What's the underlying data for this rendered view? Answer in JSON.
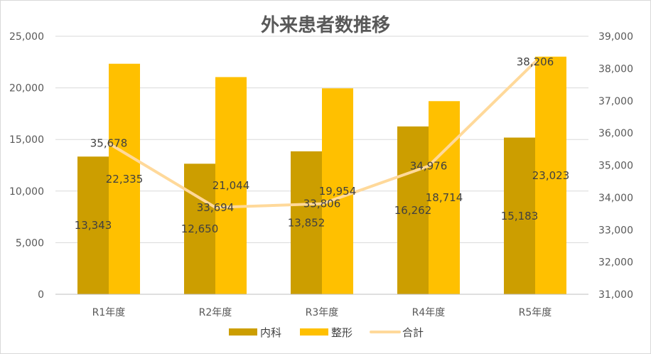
{
  "chart_data": {
    "type": "bar",
    "title": "外来患者数推移",
    "categories": [
      "R1年度",
      "R2年度",
      "R3年度",
      "R4年度",
      "R5年度"
    ],
    "series": [
      {
        "name": "内科",
        "type": "bar",
        "axis": "left",
        "color": "#CC9E00",
        "values": [
          13343,
          12650,
          13852,
          16262,
          15183
        ]
      },
      {
        "name": "整形",
        "type": "bar",
        "axis": "left",
        "color": "#FFC000",
        "values": [
          22335,
          21044,
          19954,
          18714,
          23023
        ]
      },
      {
        "name": "合計",
        "type": "line",
        "axis": "right",
        "color": "#FFD99A",
        "values": [
          35678,
          33694,
          33806,
          34976,
          38206
        ]
      }
    ],
    "data_labels": {
      "内科": [
        "13,343",
        "12,650",
        "13,852",
        "16,262",
        "15,183"
      ],
      "整形": [
        "22,335",
        "21,044",
        "19,954",
        "18,714",
        "23,023"
      ],
      "合計": [
        "35,678",
        "33,694",
        "33,806",
        "34,976",
        "38,206"
      ]
    },
    "y_left": {
      "min": 0,
      "max": 25000,
      "ticks": [
        "0",
        "5,000",
        "10,000",
        "15,000",
        "20,000",
        "25,000"
      ]
    },
    "y_right": {
      "min": 31000,
      "max": 39000,
      "ticks": [
        "31,000",
        "32,000",
        "33,000",
        "34,000",
        "35,000",
        "36,000",
        "37,000",
        "38,000",
        "39,000"
      ]
    },
    "grid": true,
    "legend_position": "bottom"
  }
}
